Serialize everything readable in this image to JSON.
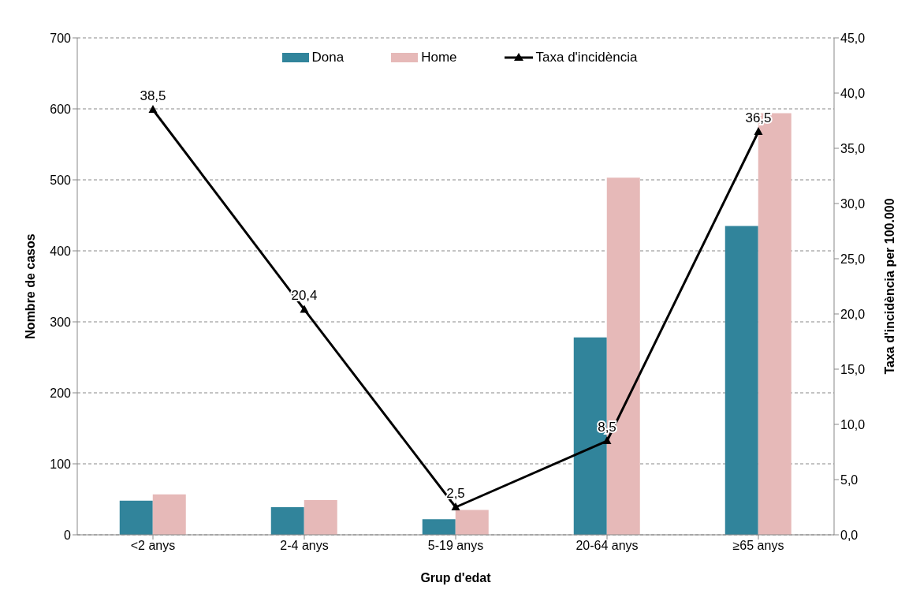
{
  "chart_data": {
    "type": "bar",
    "categories": [
      "<2 anys",
      "2-4 anys",
      "5-19 anys",
      "20-64 anys",
      "≥65 anys"
    ],
    "xlabel": "Grup d'edat",
    "ylabel": "Nombre de casos",
    "y2label": "Taxa d'incidència per 100.000",
    "series": [
      {
        "name": "Dona",
        "color": "#31849b",
        "values": [
          48,
          39,
          22,
          278,
          435
        ]
      },
      {
        "name": "Home",
        "color": "#e6b9b8",
        "values": [
          57,
          49,
          35,
          503,
          594
        ]
      },
      {
        "name": "Taxa d'incidència",
        "type": "line",
        "axis": "y2",
        "color": "#000000",
        "marker": "triangle",
        "line_style": "solid",
        "values": [
          38.5,
          20.4,
          2.5,
          8.5,
          36.5
        ],
        "value_labels": [
          "38,5",
          "20,4",
          "2,5",
          "8,5",
          "36,5"
        ]
      }
    ],
    "ylim": [
      0,
      700
    ],
    "yticks": [
      0,
      100,
      200,
      300,
      400,
      500,
      600,
      700
    ],
    "y2lim": [
      0,
      45
    ],
    "y2ticks": [
      {
        "value": 0,
        "label": "0,0"
      },
      {
        "value": 5,
        "label": "5,0"
      },
      {
        "value": 10,
        "label": "10,0"
      },
      {
        "value": 15,
        "label": "15,0"
      },
      {
        "value": 20,
        "label": "20,0"
      },
      {
        "value": 25,
        "label": "25,0"
      },
      {
        "value": 30,
        "label": "30,0"
      },
      {
        "value": 35,
        "label": "35,0"
      },
      {
        "value": 40,
        "label": "40,0"
      },
      {
        "value": 45,
        "label": "45,0"
      }
    ],
    "grid": "y",
    "legend": "top"
  }
}
